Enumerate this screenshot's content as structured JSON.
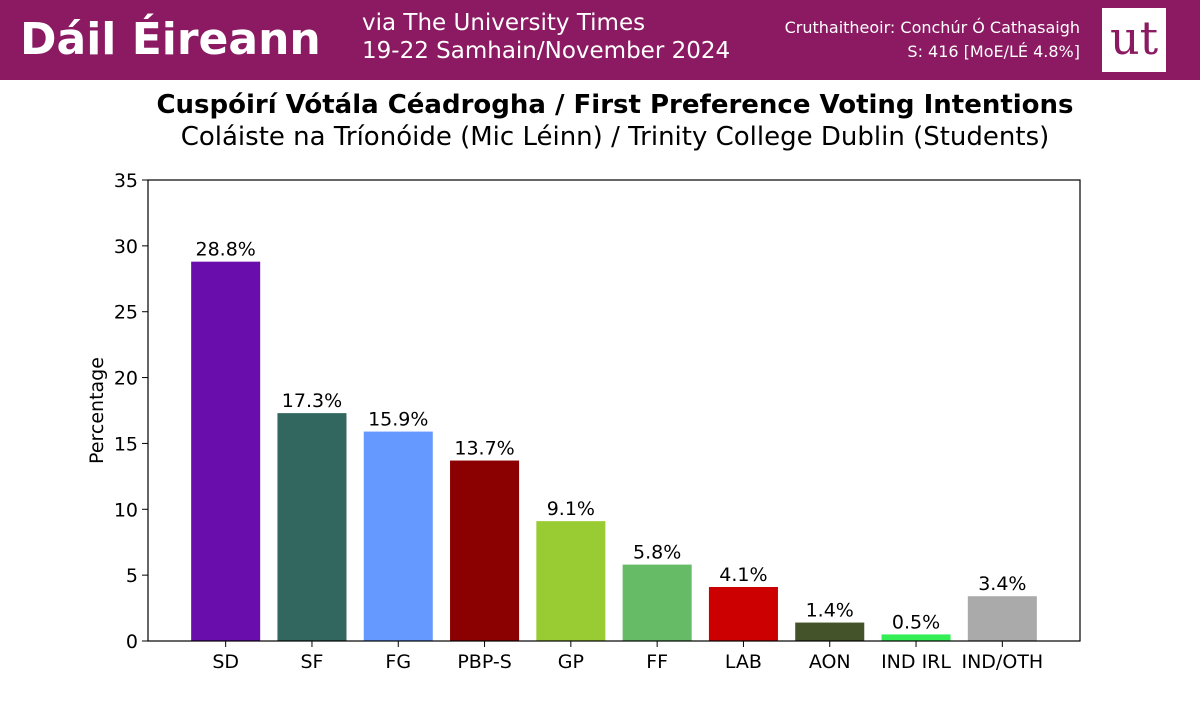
{
  "header": {
    "title": "Dáil Éireann",
    "source_line1": "via The University Times",
    "source_line2": "19-22 Samhain/November 2024",
    "credit_line1": "Cruthaitheoir: Conchúr Ó Cathasaigh",
    "credit_line2": "S: 416 [MoE/LÉ 4.8%]",
    "logo_text": "ut",
    "background_color": "#8b1a62"
  },
  "chart_data": {
    "type": "bar",
    "title": "Cuspóirí Vótála Céadrogha / First Preference Voting Intentions",
    "subtitle": "Coláiste na Tríonóide (Mic Léinn) / Trinity College Dublin (Students)",
    "xlabel": "",
    "ylabel": "Percentage",
    "ylim": [
      0,
      35
    ],
    "yticks": [
      0,
      5,
      10,
      15,
      20,
      25,
      30,
      35
    ],
    "grid": false,
    "categories": [
      "SD",
      "SF",
      "FG",
      "PBP-S",
      "GP",
      "FF",
      "LAB",
      "AON",
      "IND IRL",
      "IND/OTH"
    ],
    "values": [
      28.8,
      17.3,
      15.9,
      13.7,
      9.1,
      5.8,
      4.1,
      1.4,
      0.5,
      3.4
    ],
    "value_labels": [
      "28.8%",
      "17.3%",
      "15.9%",
      "13.7%",
      "9.1%",
      "5.8%",
      "4.1%",
      "1.4%",
      "0.5%",
      "3.4%"
    ],
    "colors": [
      "#6a0dad",
      "#326760",
      "#6699ff",
      "#8b0000",
      "#99cc33",
      "#66bb66",
      "#cc0000",
      "#44532a",
      "#33ee55",
      "#aaaaaa"
    ]
  }
}
